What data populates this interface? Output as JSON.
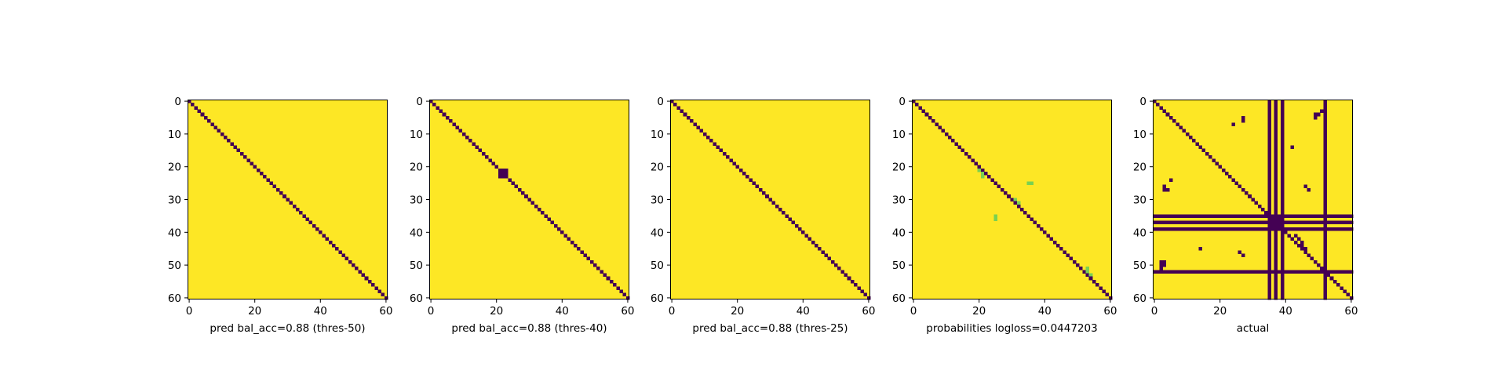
{
  "colors": {
    "low": "#440154",
    "high": "#fde725",
    "mid": "#7ad151",
    "background": "#ffffff"
  },
  "chart_data": [
    {
      "type": "heatmap",
      "xlabel": "pred bal_acc=0.88 (thres-50)",
      "size": 61,
      "background_value": 1,
      "xlim": [
        0,
        60
      ],
      "ylim": [
        60,
        0
      ],
      "xticks": [
        0,
        20,
        40,
        60
      ],
      "yticks": [
        0,
        10,
        20,
        30,
        40,
        50,
        60
      ],
      "cells": [],
      "diagonal_value": 0
    },
    {
      "type": "heatmap",
      "xlabel": "pred bal_acc=0.88 (thres-40)",
      "size": 61,
      "background_value": 1,
      "xlim": [
        0,
        60
      ],
      "ylim": [
        60,
        0
      ],
      "xticks": [
        0,
        20,
        40,
        60
      ],
      "yticks": [
        0,
        10,
        20,
        30,
        40,
        50,
        60
      ],
      "diagonal_value": 0,
      "cells": [
        {
          "row": 21,
          "col": 22,
          "value": 0
        },
        {
          "row": 22,
          "col": 21,
          "value": 0
        },
        {
          "row": 22,
          "col": 23,
          "value": 0
        },
        {
          "row": 23,
          "col": 22,
          "value": 0
        },
        {
          "row": 21,
          "col": 23,
          "value": 0
        },
        {
          "row": 23,
          "col": 21,
          "value": 0
        }
      ]
    },
    {
      "type": "heatmap",
      "xlabel": "pred bal_acc=0.88 (thres-25)",
      "size": 61,
      "background_value": 1,
      "xlim": [
        0,
        60
      ],
      "ylim": [
        60,
        0
      ],
      "xticks": [
        0,
        20,
        40,
        60
      ],
      "yticks": [
        0,
        10,
        20,
        30,
        40,
        50,
        60
      ],
      "diagonal_value": 0,
      "cells": []
    },
    {
      "type": "heatmap",
      "xlabel": "probabilities logloss=0.0447203",
      "size": 61,
      "background_value": 1,
      "xlim": [
        0,
        60
      ],
      "ylim": [
        60,
        0
      ],
      "xticks": [
        0,
        20,
        40,
        60
      ],
      "yticks": [
        0,
        10,
        20,
        30,
        40,
        50,
        60
      ],
      "diagonal_value": 0,
      "cells": [
        {
          "row": 21,
          "col": 20,
          "value": 0.6
        },
        {
          "row": 22,
          "col": 21,
          "value": 0.6
        },
        {
          "row": 23,
          "col": 21,
          "value": 0.6
        },
        {
          "row": 25,
          "col": 35,
          "value": 0.6
        },
        {
          "row": 25,
          "col": 36,
          "value": 0.6
        },
        {
          "row": 30,
          "col": 31,
          "value": 0.6
        },
        {
          "row": 31,
          "col": 32,
          "value": 0.6
        },
        {
          "row": 35,
          "col": 25,
          "value": 0.6
        },
        {
          "row": 36,
          "col": 25,
          "value": 0.6
        },
        {
          "row": 51,
          "col": 53,
          "value": 0.6
        },
        {
          "row": 52,
          "col": 53,
          "value": 0.6
        },
        {
          "row": 53,
          "col": 54,
          "value": 0.6
        }
      ]
    },
    {
      "type": "heatmap",
      "xlabel": "actual",
      "size": 61,
      "background_value": 1,
      "xlim": [
        0,
        60
      ],
      "ylim": [
        60,
        0
      ],
      "xticks": [
        0,
        20,
        40,
        60
      ],
      "yticks": [
        0,
        10,
        20,
        30,
        40,
        50,
        60
      ],
      "diagonal_value": 0,
      "rows_all_low": [
        35,
        37,
        39,
        52
      ],
      "cols_all_low": [
        35,
        37,
        39,
        52
      ],
      "cells": [
        {
          "row": 7,
          "col": 24,
          "value": 0
        },
        {
          "row": 6,
          "col": 27,
          "value": 0
        },
        {
          "row": 5,
          "col": 27,
          "value": 0
        },
        {
          "row": 4,
          "col": 50,
          "value": 0
        },
        {
          "row": 3,
          "col": 51,
          "value": 0
        },
        {
          "row": 4,
          "col": 49,
          "value": 0
        },
        {
          "row": 5,
          "col": 49,
          "value": 0
        },
        {
          "row": 14,
          "col": 42,
          "value": 0
        },
        {
          "row": 24,
          "col": 5,
          "value": 0
        },
        {
          "row": 26,
          "col": 3,
          "value": 0
        },
        {
          "row": 27,
          "col": 3,
          "value": 0
        },
        {
          "row": 27,
          "col": 4,
          "value": 0
        },
        {
          "row": 26,
          "col": 46,
          "value": 0
        },
        {
          "row": 27,
          "col": 47,
          "value": 0
        },
        {
          "row": 45,
          "col": 14,
          "value": 0
        },
        {
          "row": 46,
          "col": 26,
          "value": 0
        },
        {
          "row": 47,
          "col": 27,
          "value": 0
        },
        {
          "row": 49,
          "col": 2,
          "value": 0
        },
        {
          "row": 49,
          "col": 3,
          "value": 0
        },
        {
          "row": 50,
          "col": 2,
          "value": 0
        },
        {
          "row": 50,
          "col": 3,
          "value": 0
        },
        {
          "row": 51,
          "col": 2,
          "value": 0
        },
        {
          "row": 41,
          "col": 43,
          "value": 0
        },
        {
          "row": 42,
          "col": 44,
          "value": 0
        },
        {
          "row": 43,
          "col": 45,
          "value": 0
        },
        {
          "row": 44,
          "col": 45,
          "value": 0
        },
        {
          "row": 45,
          "col": 46,
          "value": 0
        },
        {
          "row": 46,
          "col": 46,
          "value": 0
        },
        {
          "row": 36,
          "col": 36,
          "value": 0
        },
        {
          "row": 36,
          "col": 38,
          "value": 0
        },
        {
          "row": 38,
          "col": 36,
          "value": 0
        },
        {
          "row": 38,
          "col": 38,
          "value": 0
        }
      ]
    }
  ]
}
